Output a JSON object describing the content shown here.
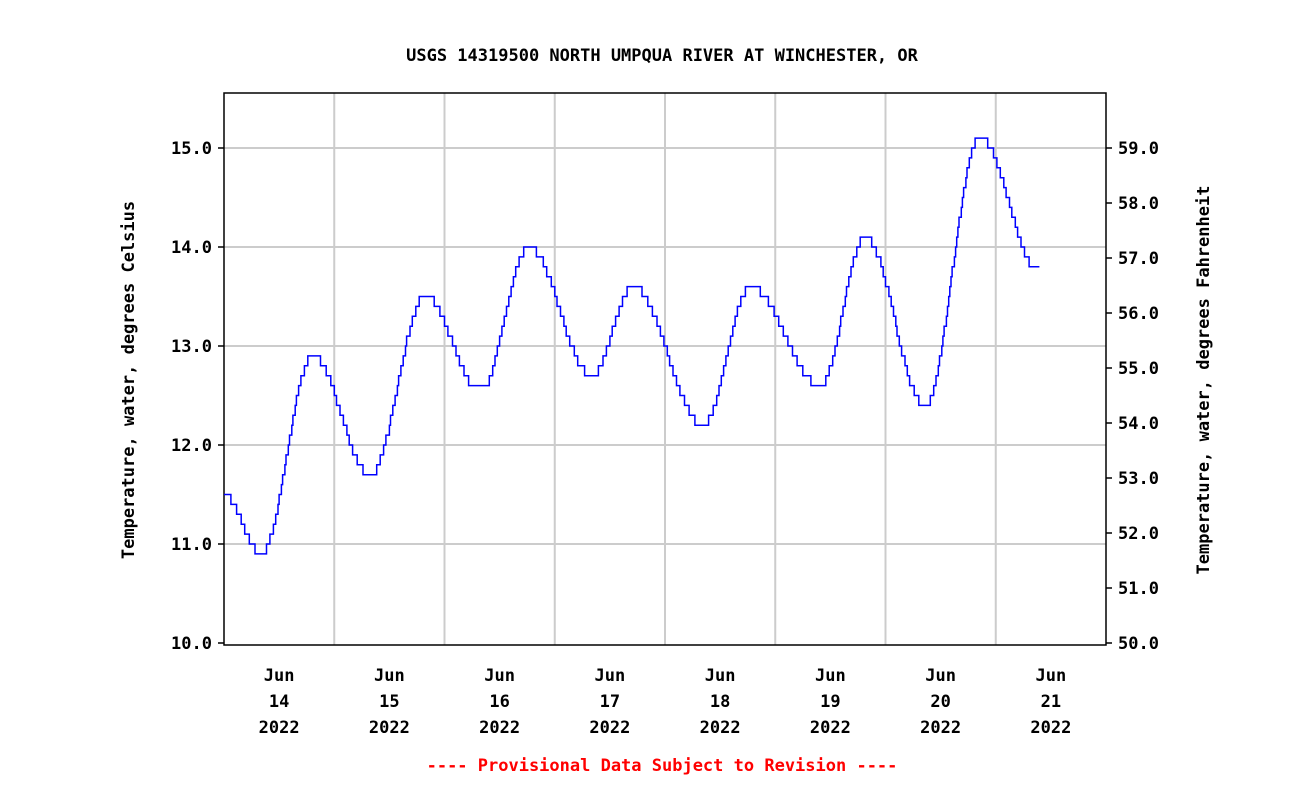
{
  "chart_data": {
    "type": "line",
    "title": "USGS 14319500 NORTH UMPQUA RIVER AT WINCHESTER, OR",
    "ylabel": "Temperature, water, degrees Celsius",
    "ylabel_right": "Temperature, water, degrees Fahrenheit",
    "ylim": [
      10.0,
      15.55
    ],
    "yticks": [
      "10.0",
      "11.0",
      "12.0",
      "13.0",
      "14.0",
      "15.0"
    ],
    "yticks_right": [
      "50.0",
      "51.0",
      "52.0",
      "53.0",
      "54.0",
      "55.0",
      "56.0",
      "57.0",
      "58.0",
      "59.0"
    ],
    "xlim": [
      "2022-06-14T00:00",
      "2022-06-22T00:00"
    ],
    "xticks": [
      {
        "month": "Jun",
        "day": "14",
        "year": "2022"
      },
      {
        "month": "Jun",
        "day": "15",
        "year": "2022"
      },
      {
        "month": "Jun",
        "day": "16",
        "year": "2022"
      },
      {
        "month": "Jun",
        "day": "17",
        "year": "2022"
      },
      {
        "month": "Jun",
        "day": "18",
        "year": "2022"
      },
      {
        "month": "Jun",
        "day": "19",
        "year": "2022"
      },
      {
        "month": "Jun",
        "day": "20",
        "year": "2022"
      },
      {
        "month": "Jun",
        "day": "21",
        "year": "2022"
      }
    ],
    "grid": true,
    "line_color": "#0000ff",
    "series": [
      {
        "points": [
          [
            "2022-06-14T00:00",
            11.5
          ],
          [
            "2022-06-14T08:00",
            10.9
          ],
          [
            "2022-06-14T19:15",
            12.9
          ],
          [
            "2022-06-15T07:45",
            11.7
          ],
          [
            "2022-06-15T19:45",
            13.5
          ],
          [
            "2022-06-16T07:45",
            12.55
          ],
          [
            "2022-06-16T18:15",
            14.0
          ],
          [
            "2022-06-17T08:00",
            12.7
          ],
          [
            "2022-06-17T17:00",
            13.6
          ],
          [
            "2022-06-18T08:15",
            12.2
          ],
          [
            "2022-06-18T18:30",
            13.6
          ],
          [
            "2022-06-19T09:45",
            12.6
          ],
          [
            "2022-06-19T19:30",
            14.1
          ],
          [
            "2022-06-20T08:30",
            12.4
          ],
          [
            "2022-06-20T20:30",
            15.1
          ],
          [
            "2022-06-21T09:30",
            13.75
          ]
        ]
      }
    ],
    "footer": "---- Provisional Data Subject to Revision ----",
    "footer_color": "#ff0000"
  }
}
